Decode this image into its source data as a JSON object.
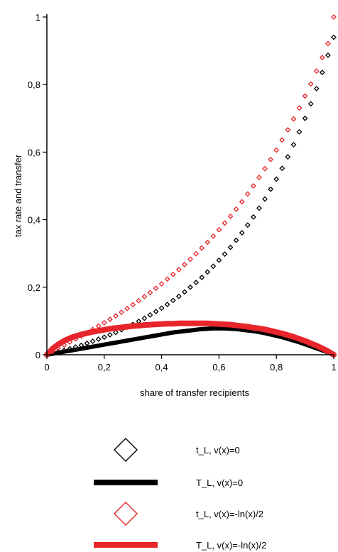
{
  "chart_data": {
    "type": "scatter",
    "title": "",
    "xlabel": "share of transfer recipients",
    "ylabel": "tax rate and transfer",
    "xlim": [
      0,
      1
    ],
    "ylim": [
      0,
      1
    ],
    "x_ticks": [
      "0",
      "0,2",
      "0,4",
      "0,6",
      "0,8",
      "1"
    ],
    "y_ticks": [
      "0",
      "0,2",
      "0,4",
      "0,6",
      "0,8",
      "1"
    ],
    "legend_position": "bottom",
    "series": [
      {
        "name": "t_L, v(x)=0",
        "marker": "diamond-open",
        "color": "#000000",
        "x": [
          0.0,
          0.02,
          0.04,
          0.06,
          0.08,
          0.1,
          0.12,
          0.14,
          0.16,
          0.18,
          0.2,
          0.22,
          0.24,
          0.26,
          0.28,
          0.3,
          0.32,
          0.34,
          0.36,
          0.38,
          0.4,
          0.42,
          0.44,
          0.46,
          0.48,
          0.5,
          0.52,
          0.54,
          0.56,
          0.58,
          0.6,
          0.62,
          0.64,
          0.66,
          0.68,
          0.7,
          0.72,
          0.74,
          0.76,
          0.78,
          0.8,
          0.82,
          0.84,
          0.86,
          0.88,
          0.9,
          0.92,
          0.94,
          0.96,
          0.98,
          1.0
        ],
        "y": [
          0.0,
          0.004,
          0.009,
          0.013,
          0.018,
          0.023,
          0.028,
          0.034,
          0.04,
          0.046,
          0.052,
          0.059,
          0.066,
          0.074,
          0.082,
          0.09,
          0.099,
          0.108,
          0.118,
          0.128,
          0.138,
          0.149,
          0.161,
          0.173,
          0.186,
          0.2,
          0.214,
          0.229,
          0.245,
          0.262,
          0.28,
          0.298,
          0.318,
          0.339,
          0.361,
          0.384,
          0.408,
          0.434,
          0.461,
          0.49,
          0.52,
          0.552,
          0.586,
          0.622,
          0.66,
          0.7,
          0.743,
          0.788,
          0.836,
          0.887,
          0.94
        ]
      },
      {
        "name": "T_L, v(x)=0",
        "marker": "line-thick",
        "color": "#000000",
        "x": [
          0.0,
          0.02,
          0.04,
          0.06,
          0.08,
          0.1,
          0.12,
          0.14,
          0.16,
          0.18,
          0.2,
          0.22,
          0.24,
          0.26,
          0.28,
          0.3,
          0.32,
          0.34,
          0.36,
          0.38,
          0.4,
          0.42,
          0.44,
          0.46,
          0.48,
          0.5,
          0.52,
          0.54,
          0.56,
          0.58,
          0.6,
          0.62,
          0.64,
          0.66,
          0.68,
          0.7,
          0.72,
          0.74,
          0.76,
          0.78,
          0.8,
          0.82,
          0.84,
          0.86,
          0.88,
          0.9,
          0.92,
          0.94,
          0.96,
          0.98,
          1.0
        ],
        "y": [
          0.0,
          0.003,
          0.006,
          0.009,
          0.012,
          0.015,
          0.018,
          0.021,
          0.024,
          0.027,
          0.03,
          0.033,
          0.036,
          0.039,
          0.042,
          0.045,
          0.048,
          0.051,
          0.054,
          0.057,
          0.06,
          0.063,
          0.066,
          0.068,
          0.07,
          0.072,
          0.074,
          0.076,
          0.077,
          0.078,
          0.078,
          0.078,
          0.077,
          0.076,
          0.074,
          0.072,
          0.07,
          0.067,
          0.064,
          0.06,
          0.056,
          0.052,
          0.047,
          0.042,
          0.037,
          0.031,
          0.025,
          0.019,
          0.013,
          0.007,
          0.0
        ]
      },
      {
        "name": "t_L, v(x)=-ln(x)/2",
        "marker": "diamond-open",
        "color": "#e8252a",
        "x": [
          0.0,
          0.02,
          0.04,
          0.06,
          0.08,
          0.1,
          0.12,
          0.14,
          0.16,
          0.18,
          0.2,
          0.22,
          0.24,
          0.26,
          0.28,
          0.3,
          0.32,
          0.34,
          0.36,
          0.38,
          0.4,
          0.42,
          0.44,
          0.46,
          0.48,
          0.5,
          0.52,
          0.54,
          0.56,
          0.58,
          0.6,
          0.62,
          0.64,
          0.66,
          0.68,
          0.7,
          0.72,
          0.74,
          0.76,
          0.78,
          0.8,
          0.82,
          0.84,
          0.86,
          0.88,
          0.9,
          0.92,
          0.94,
          0.96,
          0.98,
          1.0
        ],
        "y": [
          0.0,
          0.01,
          0.02,
          0.029,
          0.038,
          0.047,
          0.056,
          0.065,
          0.075,
          0.085,
          0.095,
          0.105,
          0.115,
          0.126,
          0.137,
          0.148,
          0.16,
          0.172,
          0.184,
          0.197,
          0.21,
          0.224,
          0.238,
          0.252,
          0.267,
          0.283,
          0.299,
          0.316,
          0.333,
          0.351,
          0.37,
          0.39,
          0.41,
          0.431,
          0.453,
          0.476,
          0.5,
          0.525,
          0.551,
          0.578,
          0.606,
          0.636,
          0.666,
          0.698,
          0.731,
          0.766,
          0.802,
          0.84,
          0.88,
          0.921,
          1.0
        ]
      },
      {
        "name": "T_L, v(x)=-ln(x)/2",
        "marker": "line-thick",
        "color": "#e8252a",
        "x": [
          0.0,
          0.02,
          0.04,
          0.06,
          0.08,
          0.1,
          0.12,
          0.14,
          0.16,
          0.18,
          0.2,
          0.22,
          0.24,
          0.26,
          0.28,
          0.3,
          0.32,
          0.34,
          0.36,
          0.38,
          0.4,
          0.42,
          0.44,
          0.46,
          0.48,
          0.5,
          0.52,
          0.54,
          0.56,
          0.58,
          0.6,
          0.62,
          0.64,
          0.66,
          0.68,
          0.7,
          0.72,
          0.74,
          0.76,
          0.78,
          0.8,
          0.82,
          0.84,
          0.86,
          0.88,
          0.9,
          0.92,
          0.94,
          0.96,
          0.98,
          1.0
        ],
        "y": [
          0.0,
          0.018,
          0.031,
          0.041,
          0.049,
          0.055,
          0.06,
          0.064,
          0.068,
          0.071,
          0.074,
          0.077,
          0.079,
          0.081,
          0.083,
          0.085,
          0.086,
          0.088,
          0.089,
          0.09,
          0.091,
          0.092,
          0.092,
          0.093,
          0.093,
          0.093,
          0.093,
          0.093,
          0.093,
          0.092,
          0.091,
          0.09,
          0.089,
          0.087,
          0.085,
          0.083,
          0.08,
          0.078,
          0.075,
          0.071,
          0.067,
          0.063,
          0.058,
          0.053,
          0.047,
          0.041,
          0.034,
          0.027,
          0.019,
          0.01,
          0.0
        ]
      }
    ]
  }
}
